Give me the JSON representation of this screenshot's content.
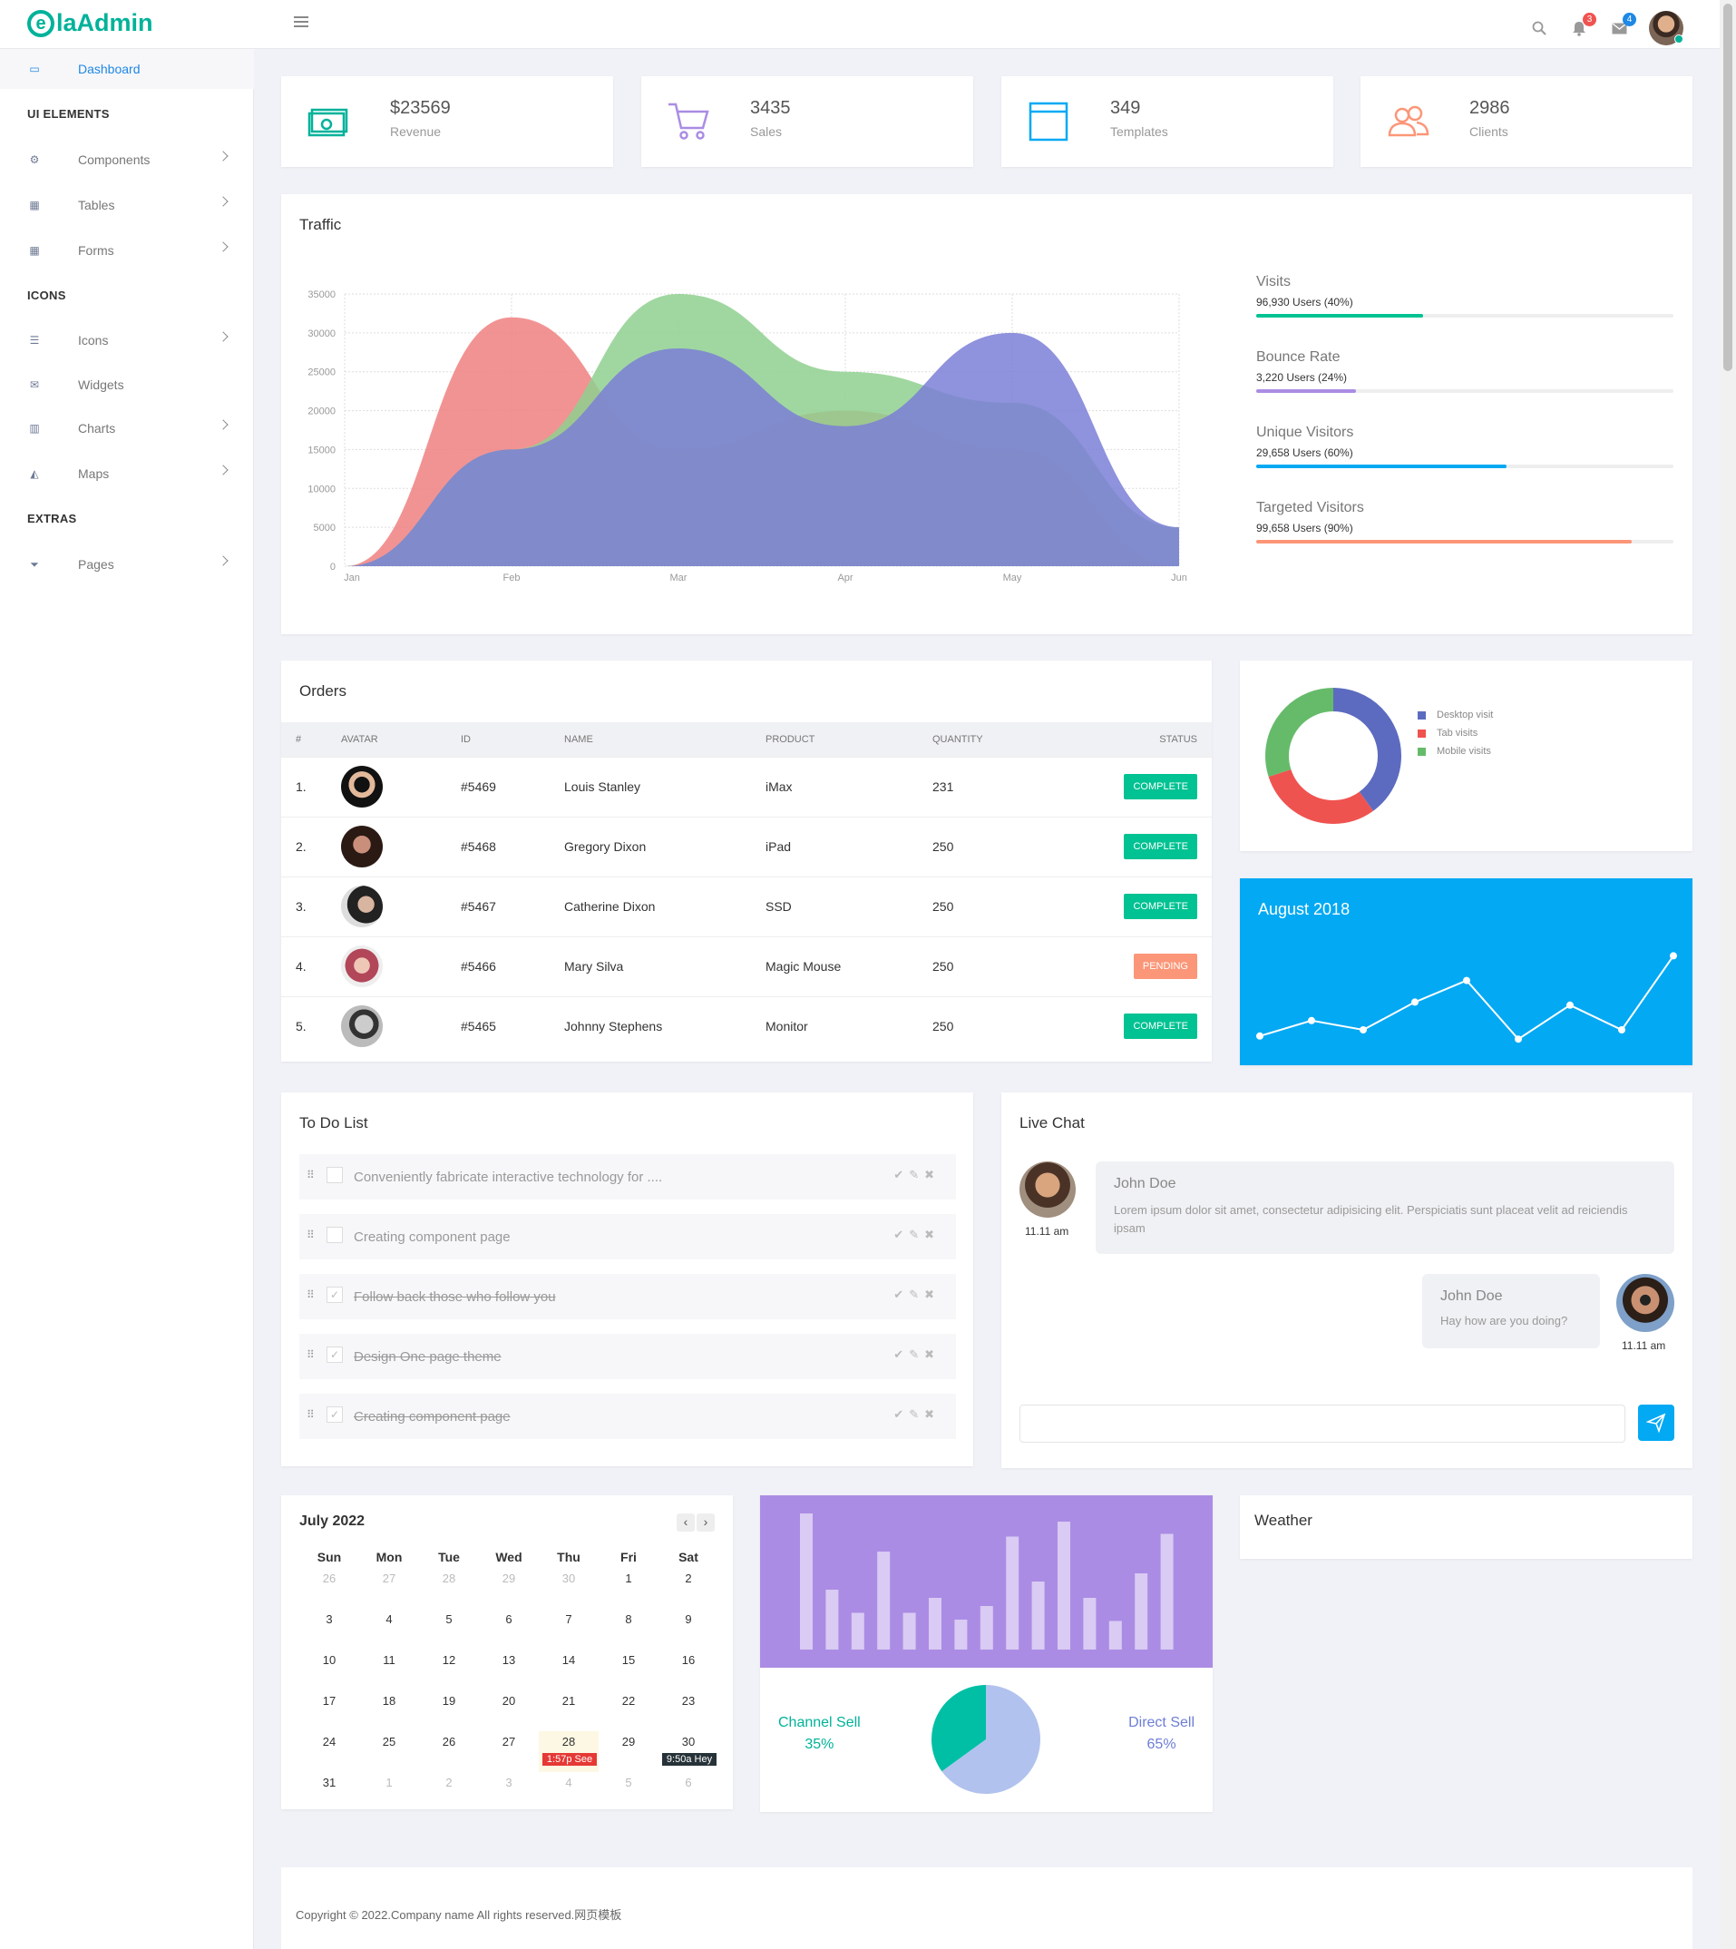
{
  "brand": {
    "logo_e": "e",
    "logo_rest": "laAdmin",
    "color": "#00b29a"
  },
  "header": {
    "search_icon": "search-icon",
    "notifications_count": "3",
    "messages_count": "4"
  },
  "sidebar": {
    "dashboard": "Dashboard",
    "sec_ui": "UI ELEMENTS",
    "components": "Components",
    "tables": "Tables",
    "forms": "Forms",
    "sec_icons": "ICONS",
    "icons": "Icons",
    "widgets": "Widgets",
    "charts": "Charts",
    "maps": "Maps",
    "sec_extras": "EXTRAS",
    "pages": "Pages"
  },
  "stats": [
    {
      "value": "$23569",
      "label": "Revenue",
      "icon": "money-icon",
      "color": "#00b29a"
    },
    {
      "value": "3435",
      "label": "Sales",
      "icon": "cart-icon",
      "color": "#ab8ce4"
    },
    {
      "value": "349",
      "label": "Templates",
      "icon": "browser-icon",
      "color": "#03a9f3"
    },
    {
      "value": "2986",
      "label": "Clients",
      "icon": "users-icon",
      "color": "#fb9678"
    }
  ],
  "traffic": {
    "title": "Traffic",
    "metrics": [
      {
        "title": "Visits",
        "sub": "96,930 Users (40%)",
        "pct": 40,
        "color": "#00c292"
      },
      {
        "title": "Bounce Rate",
        "sub": "3,220 Users (24%)",
        "pct": 24,
        "color": "#ab8ce4"
      },
      {
        "title": "Unique Visitors",
        "sub": "29,658 Users (60%)",
        "pct": 60,
        "color": "#03a9f3"
      },
      {
        "title": "Targeted Visitors",
        "sub": "99,658 Users (90%)",
        "pct": 90,
        "color": "#fb9678"
      }
    ]
  },
  "chart_data": [
    {
      "type": "area",
      "x": [
        "Jan",
        "Feb",
        "Mar",
        "Apr",
        "May",
        "Jun"
      ],
      "ylim": [
        0,
        35000
      ],
      "yticks": [
        0,
        5000,
        10000,
        15000,
        20000,
        25000,
        30000,
        35000
      ],
      "series": [
        {
          "values": [
            0,
            32000,
            15000,
            20000,
            15000,
            0
          ],
          "color": "#f08080"
        },
        {
          "values": [
            0,
            15000,
            35000,
            25000,
            21000,
            5000
          ],
          "color": "#8fd08f"
        },
        {
          "values": [
            0,
            15000,
            28000,
            18000,
            30000,
            5000
          ],
          "color": "#7b7fd6"
        }
      ]
    },
    {
      "type": "pie",
      "series": [
        {
          "name": "Desktop visit",
          "value": 40,
          "color": "#5c6bc0"
        },
        {
          "name": "Tab visits",
          "value": 30,
          "color": "#ef5350"
        },
        {
          "name": "Mobile visits",
          "value": 30,
          "color": "#66bb6a"
        }
      ]
    },
    {
      "type": "line",
      "title": "August 2018",
      "values": [
        3,
        8,
        5,
        14,
        21,
        2,
        13,
        5,
        29
      ]
    },
    {
      "type": "bar",
      "values": [
        100,
        44,
        27,
        72,
        27,
        38,
        22,
        32,
        83,
        50,
        94,
        38,
        21,
        56,
        85
      ]
    },
    {
      "type": "pie",
      "series": [
        {
          "name": "Channel Sell",
          "value": 35,
          "color": "#00bfa5"
        },
        {
          "name": "Direct Sell",
          "value": 65,
          "color": "#b1c2ee"
        }
      ]
    }
  ],
  "orders": {
    "title": "Orders",
    "headers": [
      "#",
      "AVATAR",
      "ID",
      "NAME",
      "PRODUCT",
      "QUANTITY",
      "STATUS"
    ],
    "rows": [
      {
        "n": "1.",
        "id": "#5469",
        "name": "Louis Stanley",
        "product": "iMax",
        "qty": "231",
        "status": "COMPLETE"
      },
      {
        "n": "2.",
        "id": "#5468",
        "name": "Gregory Dixon",
        "product": "iPad",
        "qty": "250",
        "status": "COMPLETE"
      },
      {
        "n": "3.",
        "id": "#5467",
        "name": "Catherine Dixon",
        "product": "SSD",
        "qty": "250",
        "status": "COMPLETE"
      },
      {
        "n": "4.",
        "id": "#5466",
        "name": "Mary Silva",
        "product": "Magic Mouse",
        "qty": "250",
        "status": "PENDING"
      },
      {
        "n": "5.",
        "id": "#5465",
        "name": "Johnny Stephens",
        "product": "Monitor",
        "qty": "250",
        "status": "COMPLETE"
      }
    ]
  },
  "todo": {
    "title": "To Do List",
    "items": [
      {
        "text": "Conveniently fabricate interactive technology for ....",
        "done": false
      },
      {
        "text": "Creating component page",
        "done": false
      },
      {
        "text": "Follow back those who follow you",
        "done": true
      },
      {
        "text": "Design One page theme",
        "done": true
      },
      {
        "text": "Creating component page",
        "done": true
      }
    ]
  },
  "chat": {
    "title": "Live Chat",
    "msg1": {
      "name": "John Doe",
      "text": "Lorem ipsum dolor sit amet, consectetur adipisicing elit. Perspiciatis sunt placeat velit ad reiciendis ipsam",
      "time": "11.11 am"
    },
    "msg2": {
      "name": "John Doe",
      "text": "Hay how are you doing?",
      "time": "11.11 am"
    }
  },
  "calendar": {
    "title": "July 2022",
    "days": [
      "Sun",
      "Mon",
      "Tue",
      "Wed",
      "Thu",
      "Fri",
      "Sat"
    ],
    "weeks": [
      [
        "26",
        "27",
        "28",
        "29",
        "30",
        "1",
        "2"
      ],
      [
        "3",
        "4",
        "5",
        "6",
        "7",
        "8",
        "9"
      ],
      [
        "10",
        "11",
        "12",
        "13",
        "14",
        "15",
        "16"
      ],
      [
        "17",
        "18",
        "19",
        "20",
        "21",
        "22",
        "23"
      ],
      [
        "24",
        "25",
        "26",
        "27",
        "28",
        "29",
        "30"
      ],
      [
        "31",
        "1",
        "2",
        "3",
        "4",
        "5",
        "6"
      ]
    ],
    "event1": "1:57p See",
    "event2": "9:50a Hey"
  },
  "sell": {
    "channel_label": "Channel Sell",
    "channel_pct": "35%",
    "direct_label": "Direct Sell",
    "direct_pct": "65%"
  },
  "weather": {
    "title": "Weather"
  },
  "footer": "Copyright © 2022.Company name All rights reserved.网页模板"
}
